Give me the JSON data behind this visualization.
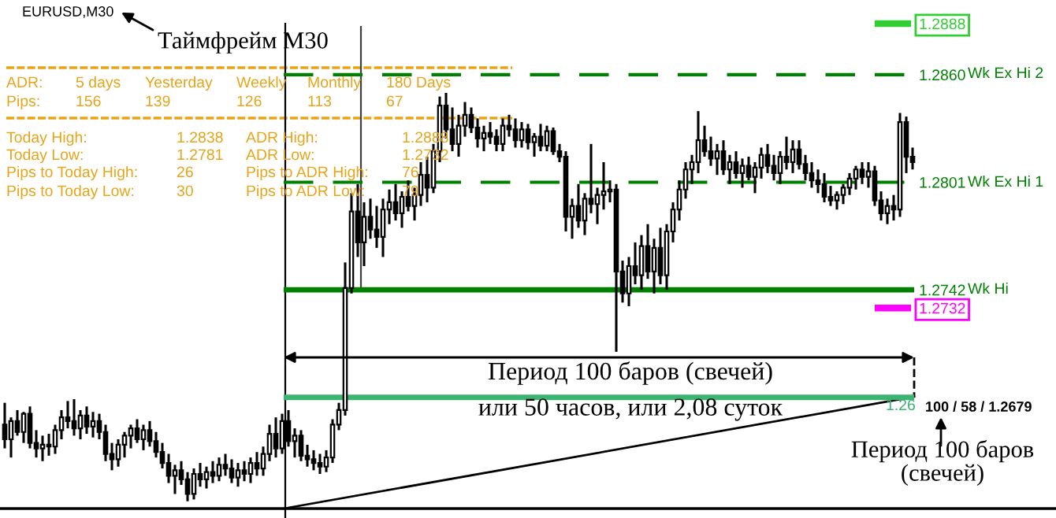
{
  "chart_data": {
    "type": "candlestick",
    "title": "EURUSD,M30",
    "categories": [
      null,
      null,
      null,
      null,
      null,
      null,
      null,
      null,
      null,
      null,
      null,
      null,
      null,
      null,
      null,
      null,
      null,
      null,
      null,
      null,
      null,
      null,
      null,
      null,
      null,
      null,
      null,
      null,
      null,
      null,
      null,
      null,
      null,
      null,
      null,
      null,
      null,
      null,
      null,
      null,
      null,
      null,
      null,
      null,
      null,
      null,
      null,
      null,
      null,
      null,
      null,
      null,
      null,
      null,
      null,
      null,
      null,
      null,
      null,
      null,
      null,
      null,
      null,
      null,
      null,
      null,
      null,
      null,
      null,
      null,
      null,
      null,
      null,
      null,
      null,
      null,
      null,
      null,
      null,
      null,
      null,
      null,
      null,
      null,
      null,
      null,
      null,
      null,
      null,
      null,
      null,
      null,
      null,
      null,
      null,
      null,
      null,
      null,
      null,
      null,
      null,
      null,
      null,
      null,
      null,
      null,
      null,
      null,
      null,
      null,
      null,
      null,
      null,
      null,
      null,
      null,
      null,
      null,
      null,
      null,
      null,
      null,
      null,
      null,
      null,
      null,
      null,
      null,
      null,
      null,
      null,
      null,
      null,
      null,
      null,
      null,
      null,
      null,
      null,
      null,
      null,
      null,
      null,
      null,
      null
    ],
    "ohlc": [
      [
        1.2668,
        1.268,
        1.2655,
        1.266
      ],
      [
        1.266,
        1.2672,
        1.265,
        1.267
      ],
      [
        1.267,
        1.2676,
        1.2662,
        1.2664
      ],
      [
        1.2664,
        1.2675,
        1.2658,
        1.2674
      ],
      [
        1.2674,
        1.2678,
        1.2655,
        1.2658
      ],
      [
        1.2658,
        1.2665,
        1.265,
        1.2655
      ],
      [
        1.2655,
        1.2662,
        1.2648,
        1.2657
      ],
      [
        1.2657,
        1.2663,
        1.2651,
        1.2656
      ],
      [
        1.2656,
        1.2668,
        1.2652,
        1.2665
      ],
      [
        1.2665,
        1.2676,
        1.266,
        1.2672
      ],
      [
        1.2672,
        1.2681,
        1.2666,
        1.267
      ],
      [
        1.267,
        1.2682,
        1.2662,
        1.2666
      ],
      [
        1.2666,
        1.2676,
        1.266,
        1.2673
      ],
      [
        1.2673,
        1.2678,
        1.2663,
        1.2667
      ],
      [
        1.2667,
        1.2675,
        1.2661,
        1.267
      ],
      [
        1.267,
        1.2674,
        1.266,
        1.2664
      ],
      [
        1.2664,
        1.2668,
        1.2648,
        1.2652
      ],
      [
        1.2652,
        1.2658,
        1.2643,
        1.2649
      ],
      [
        1.2649,
        1.266,
        1.2645,
        1.2657
      ],
      [
        1.2657,
        1.2664,
        1.265,
        1.2662
      ],
      [
        1.2662,
        1.2668,
        1.2655,
        1.2666
      ],
      [
        1.2666,
        1.2671,
        1.2658,
        1.266
      ],
      [
        1.266,
        1.2668,
        1.2654,
        1.2665
      ],
      [
        1.2665,
        1.267,
        1.2656,
        1.2659
      ],
      [
        1.2659,
        1.2664,
        1.265,
        1.2653
      ],
      [
        1.2653,
        1.2658,
        1.2644,
        1.2647
      ],
      [
        1.2647,
        1.2652,
        1.2636,
        1.264
      ],
      [
        1.264,
        1.2646,
        1.263,
        1.2643
      ],
      [
        1.2643,
        1.2648,
        1.2635,
        1.2638
      ],
      [
        1.2638,
        1.2642,
        1.2626,
        1.263
      ],
      [
        1.263,
        1.2644,
        1.2627,
        1.2641
      ],
      [
        1.2641,
        1.2647,
        1.2634,
        1.2638
      ],
      [
        1.2638,
        1.2645,
        1.2633,
        1.2642
      ],
      [
        1.2642,
        1.2648,
        1.2636,
        1.264
      ],
      [
        1.264,
        1.265,
        1.2637,
        1.2646
      ],
      [
        1.2646,
        1.2652,
        1.264,
        1.2644
      ],
      [
        1.2644,
        1.2649,
        1.2636,
        1.2639
      ],
      [
        1.2639,
        1.2647,
        1.2634,
        1.2643
      ],
      [
        1.2643,
        1.2648,
        1.2637,
        1.2641
      ],
      [
        1.2641,
        1.265,
        1.2636,
        1.2647
      ],
      [
        1.2647,
        1.2653,
        1.264,
        1.2644
      ],
      [
        1.2644,
        1.2656,
        1.264,
        1.2652
      ],
      [
        1.2652,
        1.2668,
        1.2648,
        1.2663
      ],
      [
        1.2663,
        1.2672,
        1.265,
        1.2655
      ],
      [
        1.2655,
        1.2674,
        1.2652,
        1.267
      ],
      [
        1.267,
        1.2676,
        1.2656,
        1.2659
      ],
      [
        1.2659,
        1.2666,
        1.265,
        1.2662
      ],
      [
        1.2662,
        1.2665,
        1.2648,
        1.2651
      ],
      [
        1.2651,
        1.2657,
        1.2645,
        1.2649
      ],
      [
        1.2649,
        1.2654,
        1.2643,
        1.2647
      ],
      [
        1.2647,
        1.2652,
        1.2641,
        1.2645
      ],
      [
        1.2645,
        1.2654,
        1.2642,
        1.265
      ],
      [
        1.265,
        1.2671,
        1.2647,
        1.2668
      ],
      [
        1.2668,
        1.268,
        1.2665,
        1.2676
      ],
      [
        1.2676,
        1.2757,
        1.2673,
        1.2743
      ],
      [
        1.2743,
        1.2795,
        1.274,
        1.2785
      ],
      [
        1.2785,
        1.28,
        1.276,
        1.2768
      ],
      [
        1.2768,
        1.279,
        1.2755,
        1.2782
      ],
      [
        1.2782,
        1.2792,
        1.277,
        1.2775
      ],
      [
        1.2775,
        1.2788,
        1.2765,
        1.2771
      ],
      [
        1.2771,
        1.2792,
        1.276,
        1.2786
      ],
      [
        1.2786,
        1.2797,
        1.2778,
        1.279
      ],
      [
        1.279,
        1.28,
        1.278,
        1.2784
      ],
      [
        1.2784,
        1.2796,
        1.2776,
        1.2793
      ],
      [
        1.2793,
        1.2802,
        1.2785,
        1.2788
      ],
      [
        1.2788,
        1.2798,
        1.278,
        1.2794
      ],
      [
        1.2794,
        1.2812,
        1.2788,
        1.2805
      ],
      [
        1.2805,
        1.2815,
        1.279,
        1.2798
      ],
      [
        1.2798,
        1.2822,
        1.2795,
        1.2818
      ],
      [
        1.2818,
        1.2848,
        1.2812,
        1.2843
      ],
      [
        1.2843,
        1.285,
        1.2825,
        1.283
      ],
      [
        1.283,
        1.2842,
        1.2818,
        1.2822
      ],
      [
        1.2822,
        1.2838,
        1.2815,
        1.2832
      ],
      [
        1.2832,
        1.2845,
        1.2826,
        1.2838
      ],
      [
        1.2838,
        1.2842,
        1.2828,
        1.2831
      ],
      [
        1.2831,
        1.2836,
        1.282,
        1.2825
      ],
      [
        1.2825,
        1.2832,
        1.2818,
        1.2828
      ],
      [
        1.2828,
        1.2834,
        1.2822,
        1.2826
      ],
      [
        1.2826,
        1.283,
        1.2818,
        1.2822
      ],
      [
        1.2822,
        1.2836,
        1.2818,
        1.2832
      ],
      [
        1.2832,
        1.2838,
        1.2826,
        1.283
      ],
      [
        1.283,
        1.2836,
        1.282,
        1.2824
      ],
      [
        1.2824,
        1.2834,
        1.282,
        1.283
      ],
      [
        1.283,
        1.2833,
        1.2819,
        1.2823
      ],
      [
        1.2823,
        1.2828,
        1.2815,
        1.2826
      ],
      [
        1.2826,
        1.2833,
        1.2818,
        1.2821
      ],
      [
        1.2821,
        1.2832,
        1.2818,
        1.2829
      ],
      [
        1.2829,
        1.2831,
        1.2816,
        1.2818
      ],
      [
        1.2818,
        1.2822,
        1.2812,
        1.2815
      ],
      [
        1.2815,
        1.2818,
        1.2774,
        1.2782
      ],
      [
        1.2782,
        1.2792,
        1.277,
        1.2788
      ],
      [
        1.2788,
        1.28,
        1.2776,
        1.278
      ],
      [
        1.278,
        1.2795,
        1.2772,
        1.2792
      ],
      [
        1.2792,
        1.2822,
        1.2784,
        1.2789
      ],
      [
        1.2789,
        1.2798,
        1.2778,
        1.2794
      ],
      [
        1.2794,
        1.2812,
        1.2786,
        1.2796
      ],
      [
        1.2796,
        1.2802,
        1.279,
        1.2797
      ],
      [
        1.2797,
        1.28,
        1.2708,
        1.2752
      ],
      [
        1.2752,
        1.2758,
        1.2735,
        1.274
      ],
      [
        1.274,
        1.276,
        1.2733,
        1.2755
      ],
      [
        1.2755,
        1.2768,
        1.2745,
        1.275
      ],
      [
        1.275,
        1.2772,
        1.2742,
        1.2766
      ],
      [
        1.2766,
        1.2778,
        1.2748,
        1.2752
      ],
      [
        1.2752,
        1.277,
        1.274,
        1.2765
      ],
      [
        1.2765,
        1.2776,
        1.2745,
        1.275
      ],
      [
        1.275,
        1.2778,
        1.2742,
        1.2774
      ],
      [
        1.2774,
        1.279,
        1.2768,
        1.2786
      ],
      [
        1.2786,
        1.2802,
        1.278,
        1.2797
      ],
      [
        1.2797,
        1.2812,
        1.2792,
        1.2808
      ],
      [
        1.2808,
        1.2816,
        1.28,
        1.2812
      ],
      [
        1.2812,
        1.284,
        1.2806,
        1.2824
      ],
      [
        1.2824,
        1.2832,
        1.2815,
        1.2818
      ],
      [
        1.2818,
        1.2826,
        1.281,
        1.2814
      ],
      [
        1.2814,
        1.2822,
        1.2805,
        1.2818
      ],
      [
        1.2818,
        1.2824,
        1.2805,
        1.2808
      ],
      [
        1.2808,
        1.2816,
        1.28,
        1.2812
      ],
      [
        1.2812,
        1.2818,
        1.2803,
        1.2806
      ],
      [
        1.2806,
        1.2814,
        1.2798,
        1.281
      ],
      [
        1.281,
        1.2815,
        1.2802,
        1.2804
      ],
      [
        1.2804,
        1.2812,
        1.2795,
        1.2809
      ],
      [
        1.2809,
        1.282,
        1.2803,
        1.2816
      ],
      [
        1.2816,
        1.2822,
        1.2806,
        1.281
      ],
      [
        1.281,
        1.2816,
        1.2802,
        1.2806
      ],
      [
        1.2806,
        1.2818,
        1.28,
        1.2815
      ],
      [
        1.2815,
        1.2826,
        1.2808,
        1.2812
      ],
      [
        1.2812,
        1.2824,
        1.2806,
        1.2819
      ],
      [
        1.2819,
        1.2824,
        1.2808,
        1.2811
      ],
      [
        1.2811,
        1.2816,
        1.2802,
        1.2806
      ],
      [
        1.2806,
        1.2812,
        1.2798,
        1.2802
      ],
      [
        1.2802,
        1.2808,
        1.2795,
        1.28
      ],
      [
        1.28,
        1.2806,
        1.279,
        1.2793
      ],
      [
        1.2793,
        1.2799,
        1.2788,
        1.2791
      ],
      [
        1.2791,
        1.2796,
        1.2786,
        1.2794
      ],
      [
        1.2794,
        1.28,
        1.2789,
        1.2798
      ],
      [
        1.2798,
        1.2806,
        1.2794,
        1.2803
      ],
      [
        1.2803,
        1.281,
        1.2797,
        1.2808
      ],
      [
        1.2808,
        1.2812,
        1.28,
        1.2804
      ],
      [
        1.2804,
        1.2812,
        1.2798,
        1.2807
      ],
      [
        1.2807,
        1.281,
        1.2788,
        1.2791
      ],
      [
        1.2791,
        1.2796,
        1.278,
        1.2784
      ],
      [
        1.2784,
        1.2792,
        1.2778,
        1.2788
      ],
      [
        1.2788,
        1.2794,
        1.278,
        1.2786
      ],
      [
        1.2786,
        1.2839,
        1.2782,
        1.2834
      ],
      [
        1.2834,
        1.2837,
        1.2806,
        1.2815
      ],
      [
        1.2815,
        1.282,
        1.2808,
        1.2812
      ]
    ],
    "ylim": [
      1.2622,
      1.2888
    ],
    "tick_labels": "y",
    "yticks": [
      {
        "value": 1.2888,
        "label": "1.2888"
      },
      {
        "value": 1.286,
        "label": "1.2860"
      },
      {
        "value": 1.2801,
        "label": "1.2801"
      },
      {
        "value": 1.2742,
        "label": "1.2742"
      },
      {
        "value": 1.2732,
        "label": "1.2732"
      }
    ],
    "ref_lines": [
      {
        "axis": "y",
        "value": 1.286,
        "label": "Wk Ex Hi 2",
        "color": "#008000",
        "line_style": "dashed"
      },
      {
        "axis": "y",
        "value": 1.2801,
        "label": "Wk Ex Hi 1",
        "color": "#008000",
        "line_style": "dashed"
      },
      {
        "axis": "y",
        "value": 1.2742,
        "label": "Wk Hi",
        "color": "#008000",
        "line_style": "solid"
      },
      {
        "axis": "y",
        "value": 1.2683,
        "color": "#3cb371",
        "line_style": "solid"
      }
    ],
    "annotations": [
      "Таймфрейм М30",
      "ADR:",
      "5 days",
      "Yesterday",
      "Weekly",
      "Monthly",
      "180 Days",
      "Pips:",
      "156",
      "139",
      "126",
      "113",
      "67",
      "Today High:",
      "1.2838",
      "ADR High:",
      "1.2888",
      "Today Low:",
      "1.2781",
      "ADR Low:",
      "1.2732",
      "Pips to Today High:",
      "26",
      "Pips to ADR High:",
      "76",
      "Pips to Today Low:",
      "30",
      "Pips to ADR Low:",
      "79",
      "Период 100 баров (свечей)",
      "или 50 часов, или 2,08 суток",
      "100 / 58 / 1.2679",
      "1.26",
      "Период 100 баров\n(свечей)"
    ]
  }
}
